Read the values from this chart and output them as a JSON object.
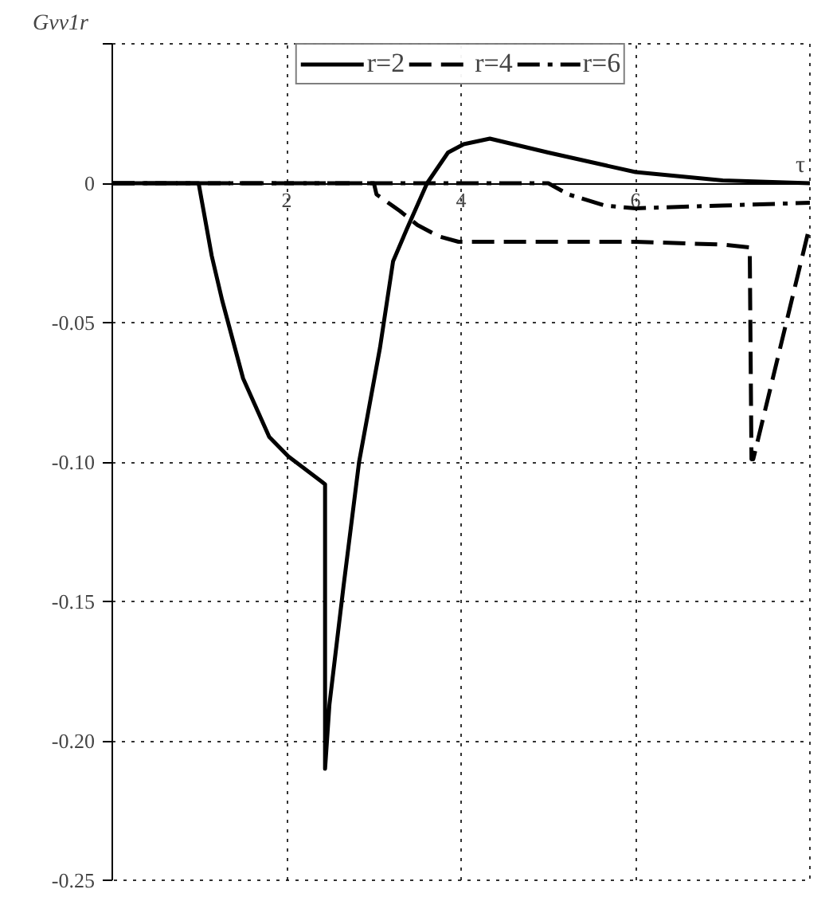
{
  "chart_data": {
    "type": "line",
    "xlabel": "τ",
    "ylabel": "Gvv1r",
    "xlim": [
      0,
      8
    ],
    "ylim": [
      -0.25,
      0.05
    ],
    "xticks": [
      2,
      4,
      6
    ],
    "yticks": [
      -0.25,
      {
        "value": -0.2,
        "label": "-0.20"
      },
      -0.15,
      {
        "value": -0.1,
        "label": "-0.10"
      },
      -0.05,
      0,
      {
        "value": 0.05,
        "label": null
      }
    ],
    "grid": true,
    "legend": "top",
    "series": [
      {
        "name": "r=2",
        "color": "#000000",
        "line_style": "solid",
        "x": [
          0,
          0.99,
          1.14,
          1.26,
          1.5,
          1.8,
          2.02,
          2.4,
          2.44,
          2.44,
          2.49,
          2.65,
          2.83,
          3.07,
          3.22,
          3.37,
          3.61,
          3.85,
          4.03,
          4.33,
          5,
          6,
          7,
          8
        ],
        "values": [
          0,
          0,
          -0.026,
          -0.042,
          -0.07,
          -0.091,
          -0.098,
          -0.107,
          -0.108,
          -0.21,
          -0.187,
          -0.145,
          -0.1,
          -0.059,
          -0.028,
          -0.017,
          0,
          0.011,
          0.014,
          0.016,
          0.011,
          0.004,
          0.001,
          0
        ]
      },
      {
        "name": "r=4",
        "color": "#000000",
        "line_style": "dashed",
        "x": [
          0,
          3.0,
          3.03,
          3.3,
          3.5,
          3.74,
          3.97,
          5,
          6,
          7,
          7.31,
          7.33,
          7.35,
          8
        ],
        "values": [
          0,
          0,
          -0.004,
          -0.01,
          -0.015,
          -0.019,
          -0.021,
          -0.021,
          -0.021,
          -0.022,
          -0.023,
          -0.099,
          -0.099,
          -0.015
        ]
      },
      {
        "name": "r=6",
        "color": "#000000",
        "line_style": "dashdot",
        "x": [
          0,
          5,
          5.23,
          5.65,
          6,
          7,
          8
        ],
        "values": [
          0,
          0,
          -0.004,
          -0.008,
          -0.009,
          -0.008,
          -0.007
        ]
      }
    ]
  }
}
